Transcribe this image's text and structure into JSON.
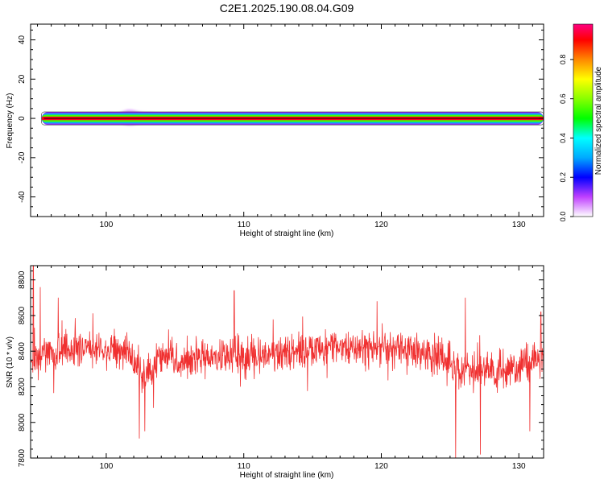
{
  "title": "C2E1.2025.190.08.04.G09",
  "chart_data": [
    {
      "type": "heatmap",
      "xlabel": "Height of straight line (km)",
      "ylabel": "Frequency (Hz)",
      "xlim": [
        94.5,
        131.8
      ],
      "ylim": [
        -50,
        48
      ],
      "x_ticks": [
        100,
        110,
        120,
        130
      ],
      "y_ticks": [
        -40,
        -20,
        0,
        20,
        40
      ],
      "x_tick_labels": [
        "100",
        "110",
        "120",
        "130"
      ],
      "y_tick_labels": [
        "-40",
        "-20",
        "0",
        "20",
        "40"
      ],
      "band_x_range": [
        95.3,
        131.8
      ],
      "band_center_hz": 0,
      "band_halfwidth_hz": [
        0.9,
        1.8,
        2.6,
        3.3
      ],
      "band_halfwidth_labels": [
        "red core",
        "yellow-green",
        "cyan",
        "violet halo"
      ],
      "spread_hz_by_x": [
        {
          "x": 96,
          "spread": 1.2
        },
        {
          "x": 99,
          "spread": 1.6
        },
        {
          "x": 101.5,
          "spread": 4.2
        },
        {
          "x": 104,
          "spread": 2.5
        },
        {
          "x": 107,
          "spread": 2.0
        },
        {
          "x": 112,
          "spread": 1.3
        },
        {
          "x": 118,
          "spread": 1.8
        },
        {
          "x": 124,
          "spread": 1.2
        },
        {
          "x": 131,
          "spread": 1.0
        }
      ],
      "colorbar": {
        "label": "Normalized spectral amplitude",
        "range": [
          0.0,
          0.98
        ],
        "ticks": [
          0.0,
          0.2,
          0.4,
          0.6,
          0.8
        ],
        "tick_labels": [
          "0.0",
          "0.2",
          "0.4",
          "0.6",
          "0.8"
        ],
        "colorscale": [
          {
            "v": 0.0,
            "color": "#ffffff"
          },
          {
            "v": 0.1,
            "color": "#c040ff"
          },
          {
            "v": 0.2,
            "color": "#0000ff"
          },
          {
            "v": 0.3,
            "color": "#00aaff"
          },
          {
            "v": 0.4,
            "color": "#00ffff"
          },
          {
            "v": 0.5,
            "color": "#00ff00"
          },
          {
            "v": 0.6,
            "color": "#88ff00"
          },
          {
            "v": 0.7,
            "color": "#ffff00"
          },
          {
            "v": 0.8,
            "color": "#ff8800"
          },
          {
            "v": 0.9,
            "color": "#ff0000"
          },
          {
            "v": 1.0,
            "color": "#ff0080"
          }
        ]
      }
    },
    {
      "type": "line",
      "xlabel": "Height of straight line (km)",
      "ylabel": "SNR (10 * v/v)",
      "xlim": [
        94.5,
        131.8
      ],
      "ylim": [
        7800,
        8880
      ],
      "x_ticks": [
        100,
        110,
        120,
        130
      ],
      "y_ticks": [
        7800,
        8000,
        8200,
        8400,
        8600,
        8800
      ],
      "x_tick_labels": [
        "100",
        "110",
        "120",
        "130"
      ],
      "y_tick_labels": [
        "7800",
        "8000",
        "8200",
        "8400",
        "8600",
        "8800"
      ],
      "color": "#f03030",
      "sample_count": 1600,
      "series": [
        {
          "mean_profile": [
            {
              "x": 94.5,
              "y": 8340
            },
            {
              "x": 96,
              "y": 8380
            },
            {
              "x": 99,
              "y": 8420
            },
            {
              "x": 101.5,
              "y": 8400
            },
            {
              "x": 102.3,
              "y": 8260
            },
            {
              "x": 104,
              "y": 8340
            },
            {
              "x": 108,
              "y": 8360
            },
            {
              "x": 112,
              "y": 8380
            },
            {
              "x": 116,
              "y": 8420
            },
            {
              "x": 120,
              "y": 8420
            },
            {
              "x": 124,
              "y": 8380
            },
            {
              "x": 126,
              "y": 8280
            },
            {
              "x": 128,
              "y": 8300
            },
            {
              "x": 130,
              "y": 8300
            },
            {
              "x": 131.8,
              "y": 8380
            }
          ],
          "noise_amplitude": 95,
          "spikes": [
            {
              "x": 94.7,
              "y": 8880
            },
            {
              "x": 95.2,
              "y": 8760
            },
            {
              "x": 96.5,
              "y": 8700
            },
            {
              "x": 102.4,
              "y": 7910
            },
            {
              "x": 102.8,
              "y": 7950
            },
            {
              "x": 109.3,
              "y": 8740
            },
            {
              "x": 119.7,
              "y": 8680
            },
            {
              "x": 125.4,
              "y": 7800
            },
            {
              "x": 126.1,
              "y": 8700
            },
            {
              "x": 127.2,
              "y": 7820
            },
            {
              "x": 130.8,
              "y": 7950
            },
            {
              "x": 131.6,
              "y": 8620
            }
          ]
        }
      ]
    }
  ]
}
